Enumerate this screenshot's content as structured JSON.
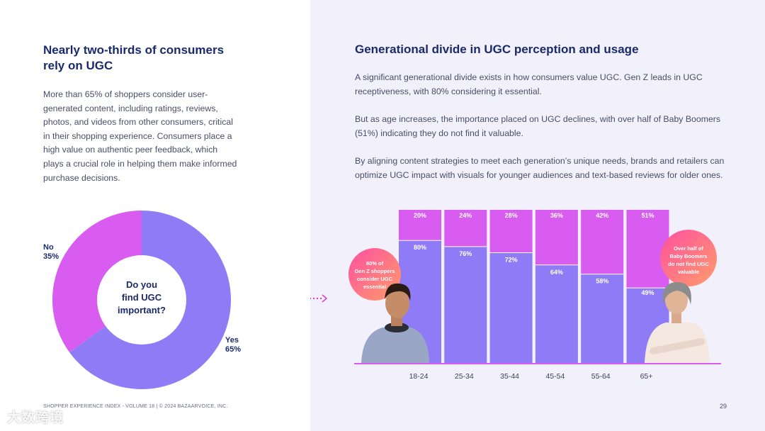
{
  "left": {
    "headline": "Nearly two-thirds of consumers rely on UGC",
    "body": "More than 65% of shoppers consider user-generated content, including ratings, reviews, photos, and videos from other consumers, critical in their shopping experience. Consumers place a high value on authentic peer feedback, which plays a crucial role in helping them make informed purchase decisions."
  },
  "donut": {
    "center_text": [
      "Do you",
      "find UGC",
      "important?"
    ],
    "no": {
      "label": "No",
      "pct": "35%"
    },
    "yes": {
      "label": "Yes",
      "pct": "65%"
    }
  },
  "right": {
    "title": "Generational divide in UGC perception and usage",
    "p1": "A significant generational divide exists in how consumers value UGC. Gen Z leads in UGC receptiveness, with 80% considering it essential.",
    "p2": "But as age increases, the importance placed on UGC declines, with over half of Baby Boomers (51%) indicating they do not find it valuable.",
    "p3": "By aligning content strategies to meet each generation’s unique needs, brands and retailers can optimize UGC impact with visuals for younger audiences and text-based reviews for older ones."
  },
  "callouts": {
    "genz": [
      "80% of",
      "Gen Z shoppers",
      "consider UGC",
      "essential"
    ],
    "boomers": [
      "Over half of",
      "Baby Boomers",
      "do not find UGC",
      "valuable"
    ]
  },
  "footer": "SHOPPER EXPERIENCE INDEX - VOLUME 18  |  © 2024 BAZAARVOICE, INC.",
  "page_number": "29",
  "watermark": "大数跨境",
  "colors": {
    "pink": "#d95cf0",
    "purple": "#8f7bf5",
    "navy": "#1a2a6c",
    "right_bg": "#f1f0fb"
  },
  "chart_data": [
    {
      "type": "pie",
      "title": "Do you find UGC important?",
      "categories": [
        "Yes",
        "No"
      ],
      "values": [
        65,
        35
      ],
      "labels": [
        "65%",
        "35%"
      ]
    },
    {
      "type": "bar",
      "stacked": true,
      "title": "Generational divide in UGC perception and usage",
      "categories": [
        "18-24",
        "25-34",
        "35-44",
        "45-54",
        "55-64",
        "65+"
      ],
      "series": [
        {
          "name": "Consider UGC essential",
          "values": [
            80,
            76,
            72,
            64,
            58,
            49
          ],
          "labels": [
            "80%",
            "76%",
            "72%",
            "64%",
            "58%",
            "49%"
          ]
        },
        {
          "name": "Do not find UGC valuable",
          "values": [
            20,
            24,
            28,
            36,
            42,
            51
          ],
          "labels": [
            "20%",
            "24%",
            "28%",
            "36%",
            "42%",
            "51%"
          ]
        }
      ],
      "ylim": [
        0,
        100
      ]
    }
  ]
}
